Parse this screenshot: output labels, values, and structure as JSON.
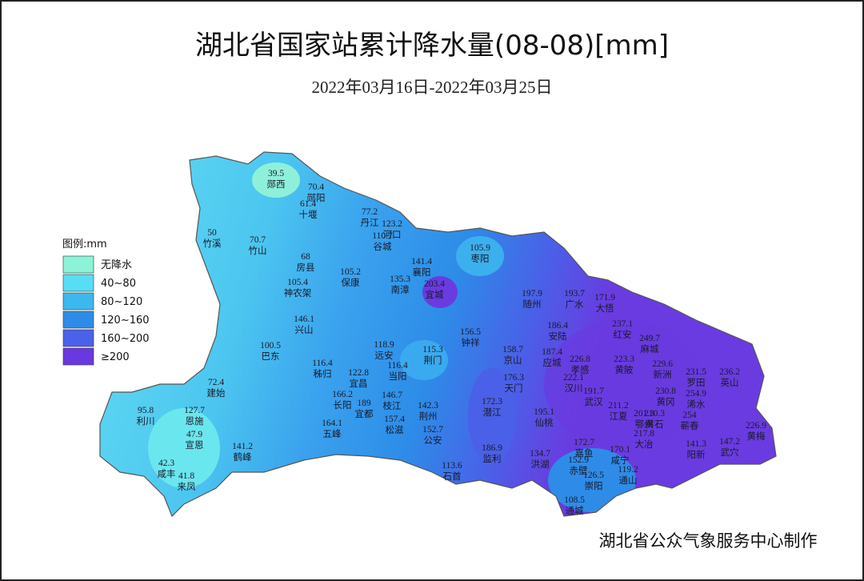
{
  "header": {
    "title": "湖北省国家站累计降水量(08-08)[mm]",
    "subtitle": "2022年03月16日-2022年03月25日"
  },
  "legend": {
    "title": "图例:mm",
    "items": [
      {
        "label": "无降水",
        "color": "#8af3d8"
      },
      {
        "label": "40~80",
        "color": "#58def4"
      },
      {
        "label": "80~120",
        "color": "#3cb8ef"
      },
      {
        "label": "120~160",
        "color": "#2e8ce8"
      },
      {
        "label": "160~200",
        "color": "#4a62ea"
      },
      {
        "label": "≥200",
        "color": "#6a38e0"
      }
    ]
  },
  "stations": [
    {
      "value": 39.5,
      "name": "郧西"
    },
    {
      "value": 70.4,
      "name": "郧阳"
    },
    {
      "value": 61.4,
      "name": "十堰"
    },
    {
      "value": 77.2,
      "name": "丹江"
    },
    {
      "value": 123.2,
      "name": "河口"
    },
    {
      "value": 110.7,
      "name": "谷城"
    },
    {
      "value": 50,
      "name": "竹溪"
    },
    {
      "value": 70.7,
      "name": "竹山"
    },
    {
      "value": 68,
      "name": "房县"
    },
    {
      "value": 105.2,
      "name": "保康"
    },
    {
      "value": 141.4,
      "name": "襄阳"
    },
    {
      "value": 135.3,
      "name": "南漳"
    },
    {
      "value": 203.4,
      "name": "宜城"
    },
    {
      "value": 105.9,
      "name": "枣阳"
    },
    {
      "value": 105.4,
      "name": "神农架"
    },
    {
      "value": 197.9,
      "name": "随州"
    },
    {
      "value": 193.7,
      "name": "广水"
    },
    {
      "value": 171.9,
      "name": "大悟"
    },
    {
      "value": 146.1,
      "name": "兴山"
    },
    {
      "value": 156.5,
      "name": "钟祥"
    },
    {
      "value": 186.4,
      "name": "安陆"
    },
    {
      "value": 237.1,
      "name": "红安"
    },
    {
      "value": 249.7,
      "name": "麻城"
    },
    {
      "value": 100.5,
      "name": "巴东"
    },
    {
      "value": 118.9,
      "name": "远安"
    },
    {
      "value": 115.3,
      "name": "荆门"
    },
    {
      "value": 158.7,
      "name": "京山"
    },
    {
      "value": 187.4,
      "name": "应城"
    },
    {
      "value": 226.8,
      "name": "孝感"
    },
    {
      "value": 223.3,
      "name": "黄陂"
    },
    {
      "value": 229.6,
      "name": "新洲"
    },
    {
      "value": 231.5,
      "name": "罗田"
    },
    {
      "value": 236.2,
      "name": "英山"
    },
    {
      "value": 116.4,
      "name": "秭归"
    },
    {
      "value": 122.8,
      "name": "宜昌"
    },
    {
      "value": 116.4,
      "name": "当阳"
    },
    {
      "value": 176.3,
      "name": "天门"
    },
    {
      "value": 222.1,
      "name": "汉川"
    },
    {
      "value": 191.7,
      "name": "武汉"
    },
    {
      "value": 72.4,
      "name": "建始"
    },
    {
      "value": 166.2,
      "name": "长阳"
    },
    {
      "value": 189,
      "name": "宜都"
    },
    {
      "value": 146.7,
      "name": "枝江"
    },
    {
      "value": 142.3,
      "name": "荆州"
    },
    {
      "value": 172.3,
      "name": "潜江"
    },
    {
      "value": 230.8,
      "name": "黄冈"
    },
    {
      "value": 254.9,
      "name": "浠水"
    },
    {
      "value": 211.2,
      "name": "江夏"
    },
    {
      "value": 201.3,
      "name": "鄂州"
    },
    {
      "value": 195.1,
      "name": "仙桃"
    },
    {
      "value": 95.8,
      "name": "利川"
    },
    {
      "value": 127.7,
      "name": "恩施"
    },
    {
      "value": 157.4,
      "name": "松滋"
    },
    {
      "value": 152.7,
      "name": "公安"
    },
    {
      "value": 164.1,
      "name": "五峰"
    },
    {
      "value": 210.3,
      "name": "黄石"
    },
    {
      "value": 254,
      "name": "蕲春"
    },
    {
      "value": 47.9,
      "name": "宣恩"
    },
    {
      "value": 141.2,
      "name": "鹤峰"
    },
    {
      "value": 217.8,
      "name": "大冶"
    },
    {
      "value": 141.3,
      "name": "阳新"
    },
    {
      "value": 147.2,
      "name": "武穴"
    },
    {
      "value": 226.9,
      "name": "黄梅"
    },
    {
      "value": 186.9,
      "name": "监利"
    },
    {
      "value": 134.7,
      "name": "洪湖"
    },
    {
      "value": 172.7,
      "name": "嘉鱼"
    },
    {
      "value": 170.1,
      "name": "咸宁"
    },
    {
      "value": 152.9,
      "name": "赤壁"
    },
    {
      "value": 119.2,
      "name": "通山"
    },
    {
      "value": 126.5,
      "name": "崇阳"
    },
    {
      "value": 108.5,
      "name": "通城"
    },
    {
      "value": 113.6,
      "name": "石首"
    },
    {
      "value": 42.3,
      "name": "咸丰"
    },
    {
      "value": 41.8,
      "name": "来凤"
    }
  ],
  "footer": {
    "credit": "湖北省公众气象服务中心制作"
  }
}
